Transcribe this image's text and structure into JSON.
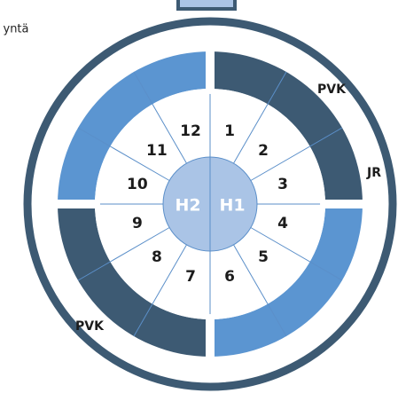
{
  "corner_text": "yntä",
  "hub": {
    "left": "H2",
    "right": "H1"
  },
  "sectors": [
    "1",
    "2",
    "3",
    "4",
    "5",
    "6",
    "7",
    "8",
    "9",
    "10",
    "11",
    "12"
  ],
  "ring_labels": {
    "top_right": "PVK",
    "right": "JR",
    "bottom_left": "PVK"
  }
}
